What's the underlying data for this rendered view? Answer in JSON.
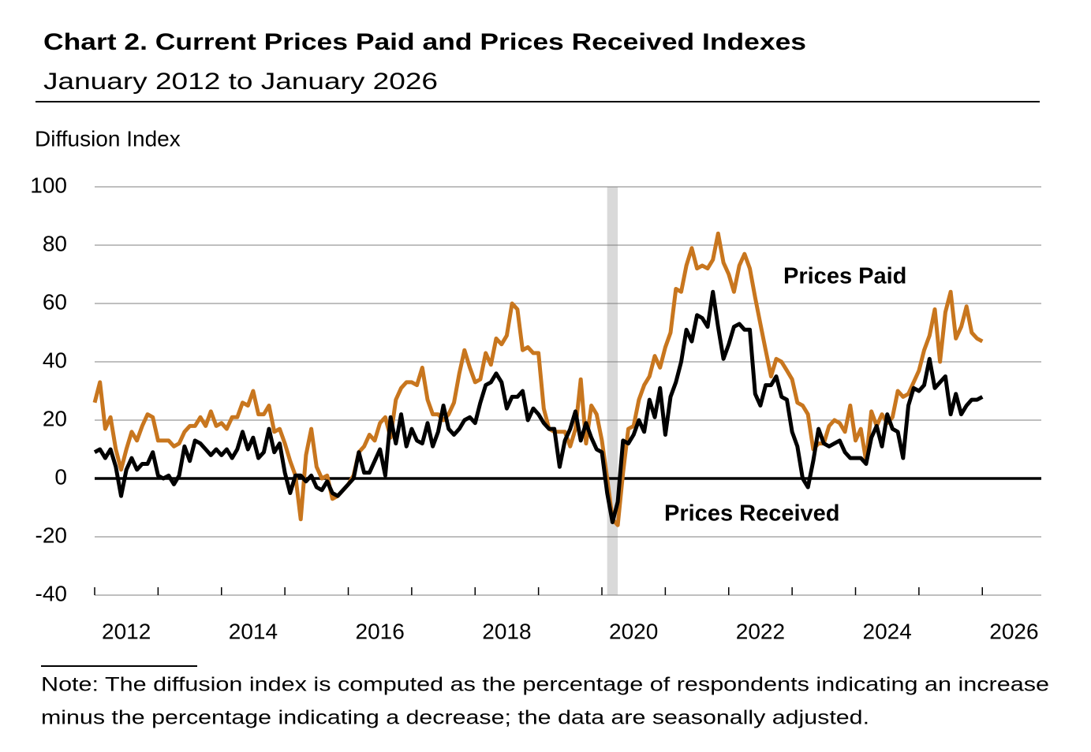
{
  "chart_data": {
    "type": "line",
    "title": "Chart 2. Current Prices Paid and Prices Received Indexes",
    "subtitle": "January 2012 to January 2026",
    "y_label": "Diffusion Index",
    "note": [
      "Note: The diffusion index is computed as the percentage of respondents indicating an increase",
      "minus the percentage indicating a decrease; the data are seasonally adjusted."
    ],
    "xlim": [
      2012,
      2026.93
    ],
    "xticks": [
      2012,
      2014,
      2016,
      2018,
      2020,
      2022,
      2024,
      2026
    ],
    "ylim": [
      -40,
      100
    ],
    "yticks": [
      -40,
      -20,
      0,
      20,
      40,
      60,
      80,
      100
    ],
    "grid": true,
    "shaded_period": [
      2020.083,
      2020.25
    ],
    "x": [
      2012,
      2012.083,
      2012.167,
      2012.25,
      2012.333,
      2012.417,
      2012.5,
      2012.583,
      2012.667,
      2012.75,
      2012.833,
      2012.917,
      2013,
      2013.083,
      2013.167,
      2013.25,
      2013.333,
      2013.417,
      2013.5,
      2013.583,
      2013.667,
      2013.75,
      2013.833,
      2013.917,
      2014,
      2014.083,
      2014.167,
      2014.25,
      2014.333,
      2014.417,
      2014.5,
      2014.583,
      2014.667,
      2014.75,
      2014.833,
      2014.917,
      2015,
      2015.083,
      2015.167,
      2015.25,
      2015.333,
      2015.417,
      2015.5,
      2015.583,
      2015.667,
      2015.75,
      2015.833,
      2015.917,
      2016,
      2016.083,
      2016.167,
      2016.25,
      2016.333,
      2016.417,
      2016.5,
      2016.583,
      2016.667,
      2016.75,
      2016.833,
      2016.917,
      2017,
      2017.083,
      2017.167,
      2017.25,
      2017.333,
      2017.417,
      2017.5,
      2017.583,
      2017.667,
      2017.75,
      2017.833,
      2017.917,
      2018,
      2018.083,
      2018.167,
      2018.25,
      2018.333,
      2018.417,
      2018.5,
      2018.583,
      2018.667,
      2018.75,
      2018.833,
      2018.917,
      2019,
      2019.083,
      2019.167,
      2019.25,
      2019.333,
      2019.417,
      2019.5,
      2019.583,
      2019.667,
      2019.75,
      2019.833,
      2019.917,
      2020,
      2020.083,
      2020.167,
      2020.25,
      2020.333,
      2020.417,
      2020.5,
      2020.583,
      2020.667,
      2020.75,
      2020.833,
      2020.917,
      2021,
      2021.083,
      2021.167,
      2021.25,
      2021.333,
      2021.417,
      2021.5,
      2021.583,
      2021.667,
      2021.75,
      2021.833,
      2021.917,
      2022,
      2022.083,
      2022.167,
      2022.25,
      2022.333,
      2022.417,
      2022.5,
      2022.583,
      2022.667,
      2022.75,
      2022.833,
      2022.917,
      2023,
      2023.083,
      2023.167,
      2023.25,
      2023.333,
      2023.417,
      2023.5,
      2023.583,
      2023.667,
      2023.75,
      2023.833,
      2023.917,
      2024,
      2024.083,
      2024.167,
      2024.25,
      2024.333,
      2024.417,
      2024.5,
      2024.583,
      2024.667,
      2024.75,
      2024.833,
      2024.917,
      2025,
      2025.083,
      2025.167,
      2025.25,
      2025.333,
      2025.417,
      2025.5,
      2025.583,
      2025.667,
      2025.75,
      2025.833,
      2025.917,
      2026
    ],
    "series": [
      {
        "name": "Prices Paid",
        "color": "#c8761e",
        "values": [
          26,
          33,
          17,
          21,
          10,
          3,
          10,
          16,
          13,
          18,
          22,
          21,
          13,
          13,
          13,
          11,
          12,
          16,
          18,
          18,
          21,
          18,
          23,
          18,
          19,
          17,
          21,
          21,
          26,
          25,
          30,
          22,
          22,
          25,
          16,
          17,
          12,
          6,
          1,
          -14,
          8,
          17,
          4,
          0,
          1,
          -7,
          -6,
          -4,
          -2,
          1,
          9,
          11,
          15,
          13,
          19,
          21,
          14,
          27,
          31,
          33,
          33,
          32,
          38,
          27,
          22,
          22,
          20,
          22,
          26,
          36,
          44,
          38,
          33,
          34,
          43,
          39,
          48,
          46,
          49,
          60,
          58,
          44,
          45,
          43,
          43,
          24,
          17,
          16,
          16,
          16,
          11,
          17,
          34,
          12,
          25,
          22,
          13,
          0,
          -14,
          -16,
          2,
          17,
          18,
          27,
          32,
          35,
          42,
          38,
          45,
          50,
          65,
          64,
          73,
          79,
          72,
          73,
          72,
          75,
          84,
          74,
          70,
          64,
          73,
          77,
          72,
          62,
          53,
          44,
          35,
          41,
          40,
          37,
          34,
          26,
          25,
          22,
          10,
          12,
          12,
          18,
          20,
          19,
          16,
          25,
          13,
          17,
          6,
          23,
          18,
          22,
          19,
          21,
          30,
          28,
          29,
          33,
          37,
          44,
          49,
          58,
          40,
          57,
          64,
          48,
          52,
          59,
          50,
          48,
          47
        ]
      },
      {
        "name": "Prices Received",
        "color": "#000000",
        "values": [
          9,
          10,
          7,
          10,
          4,
          -6,
          3,
          7,
          3,
          5,
          5,
          9,
          1,
          0,
          1,
          -2,
          1,
          11,
          6,
          13,
          12,
          10,
          8,
          10,
          8,
          10,
          7,
          10,
          16,
          10,
          14,
          7,
          9,
          17,
          9,
          12,
          2,
          -5,
          1,
          1,
          -1,
          1,
          -3,
          -4,
          -1,
          -5,
          -6,
          -4,
          -2,
          0,
          9,
          2,
          2,
          6,
          10,
          1,
          21,
          12,
          22,
          11,
          17,
          13,
          12,
          19,
          11,
          16,
          25,
          17,
          15,
          17,
          20,
          21,
          19,
          26,
          32,
          33,
          36,
          33,
          24,
          28,
          28,
          30,
          20,
          24,
          22,
          19,
          17,
          17,
          4,
          13,
          17,
          23,
          13,
          19,
          14,
          10,
          9,
          -5,
          -15,
          -8,
          13,
          12,
          15,
          20,
          16,
          27,
          21,
          31,
          15,
          28,
          33,
          40,
          51,
          47,
          56,
          55,
          52,
          64,
          52,
          41,
          46,
          52,
          53,
          51,
          51,
          29,
          25,
          32,
          32,
          35,
          28,
          27,
          16,
          11,
          0,
          -3,
          6,
          17,
          12,
          11,
          12,
          13,
          9,
          7,
          7,
          7,
          5,
          14,
          18,
          11,
          22,
          17,
          16,
          7,
          25,
          31,
          30,
          32,
          41,
          31,
          33,
          35,
          22,
          29,
          22,
          25,
          27,
          27,
          28
        ]
      }
    ]
  }
}
